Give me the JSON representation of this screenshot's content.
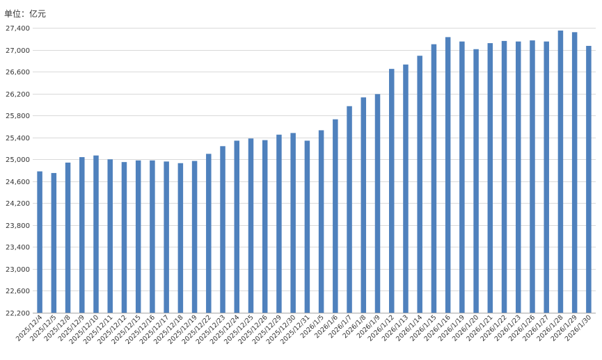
{
  "unit": "单位：亿元",
  "colors": {
    "bar": "#4f81bd",
    "grid": "#d9d9d9",
    "axis": "#a6a6a6",
    "text": "#333333"
  },
  "chart_data": {
    "type": "bar",
    "title": "",
    "xlabel": "",
    "ylabel": "单位：亿元",
    "ylim": [
      22200,
      27400
    ],
    "yticks": [
      22200,
      22600,
      23000,
      23400,
      23800,
      24200,
      24600,
      25000,
      25400,
      25800,
      26200,
      26600,
      27000,
      27400
    ],
    "ytick_labels": [
      "22,200",
      "22,600",
      "23,000",
      "23,400",
      "23,800",
      "24,200",
      "24,600",
      "25,000",
      "25,400",
      "25,800",
      "26,200",
      "26,600",
      "27,000",
      "27,400"
    ],
    "grid": true,
    "categories": [
      "2025/12/4",
      "2025/12/5",
      "2025/12/8",
      "2025/12/9",
      "2025/12/10",
      "2025/12/11",
      "2025/12/12",
      "2025/12/15",
      "2025/12/16",
      "2025/12/17",
      "2025/12/18",
      "2025/12/19",
      "2025/12/22",
      "2025/12/23",
      "2025/12/24",
      "2025/12/25",
      "2025/12/26",
      "2025/12/29",
      "2025/12/30",
      "2025/12/31",
      "2026/1/5",
      "2026/1/6",
      "2026/1/7",
      "2026/1/8",
      "2026/1/9",
      "2026/1/12",
      "2026/1/13",
      "2026/1/14",
      "2026/1/15",
      "2026/1/16",
      "2026/1/19",
      "2026/1/20",
      "2026/1/21",
      "2026/1/22",
      "2026/1/23",
      "2026/1/26",
      "2026/1/27",
      "2026/1/28",
      "2026/1/29",
      "2026/1/30"
    ],
    "values": [
      24780,
      24750,
      24940,
      25040,
      25070,
      25000,
      24950,
      24980,
      24980,
      24960,
      24930,
      24970,
      25100,
      25240,
      25340,
      25380,
      25350,
      25450,
      25480,
      25340,
      25530,
      25730,
      25970,
      26130,
      26190,
      26650,
      26730,
      26890,
      27100,
      27230,
      27150,
      27010,
      27120,
      27160,
      27150,
      27170,
      27150,
      27350,
      27320,
      27070
    ]
  }
}
